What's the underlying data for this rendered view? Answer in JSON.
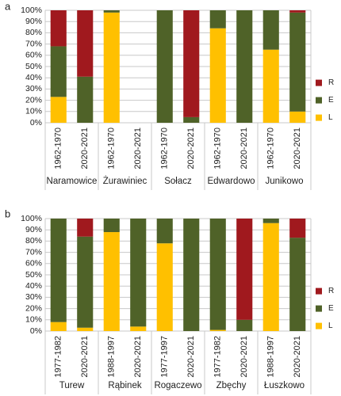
{
  "chart_data": [
    {
      "type": "bar",
      "stacked": true,
      "label": "a",
      "categories": [
        "1962-1970",
        "2020-2021",
        "1962-1970",
        "2020-2021",
        "1962-1970",
        "2020-2021",
        "1962-1970",
        "2020-2021",
        "1962-1970",
        "2020-2021"
      ],
      "groups": [
        "Naramowice",
        "Żurawiniec",
        "Sołacz",
        "Edwardowo",
        "Junikowo"
      ],
      "series": [
        {
          "name": "L",
          "color": "#ffc000",
          "values": [
            23,
            0,
            98,
            null,
            0,
            0,
            84,
            0,
            65,
            10
          ]
        },
        {
          "name": "E",
          "color": "#4f6228",
          "values": [
            45,
            41,
            2,
            null,
            100,
            5,
            16,
            100,
            35,
            88
          ]
        },
        {
          "name": "R",
          "color": "#a0191e",
          "values": [
            32,
            59,
            0,
            null,
            0,
            95,
            0,
            0,
            0,
            2
          ]
        }
      ],
      "ylim": [
        0,
        100
      ],
      "yticks": [
        {
          "value": 0,
          "label": "0%"
        },
        {
          "value": 10,
          "label": "10%"
        },
        {
          "value": 20,
          "label": "20%"
        },
        {
          "value": 30,
          "label": "30%"
        },
        {
          "value": 40,
          "label": "40%"
        },
        {
          "value": 50,
          "label": "50%"
        },
        {
          "value": 60,
          "label": "60%"
        },
        {
          "value": 70,
          "label": "70%"
        },
        {
          "value": 80,
          "label": "80%"
        },
        {
          "value": 90,
          "label": "90%"
        },
        {
          "value": 100,
          "label": "100%"
        }
      ],
      "grid": true,
      "legend": "right"
    },
    {
      "type": "bar",
      "stacked": true,
      "label": "b",
      "categories": [
        "1977-1982",
        "2020-2021",
        "1988-1997",
        "2020-2021",
        "1977-1997",
        "2020-2021",
        "1977-1982",
        "2020-2021",
        "1988-1997",
        "2020-2021"
      ],
      "groups": [
        "Turew",
        "Rąbinek",
        "Rogaczewo",
        "Zbęchy",
        "Łuszkowo"
      ],
      "series": [
        {
          "name": "L",
          "color": "#ffc000",
          "values": [
            8,
            3,
            88,
            4,
            78,
            0,
            1,
            0,
            96,
            0
          ]
        },
        {
          "name": "E",
          "color": "#4f6228",
          "values": [
            92,
            81,
            12,
            96,
            22,
            100,
            99,
            10,
            4,
            83
          ]
        },
        {
          "name": "R",
          "color": "#a0191e",
          "values": [
            0,
            16,
            0,
            0,
            0,
            0,
            0,
            90,
            0,
            17
          ]
        }
      ],
      "ylim": [
        0,
        100
      ],
      "yticks": [
        {
          "value": 0,
          "label": "0%"
        },
        {
          "value": 10,
          "label": "10%"
        },
        {
          "value": 20,
          "label": "20%"
        },
        {
          "value": 30,
          "label": "30%"
        },
        {
          "value": 40,
          "label": "40%"
        },
        {
          "value": 50,
          "label": "50%"
        },
        {
          "value": 60,
          "label": "60%"
        },
        {
          "value": 70,
          "label": "70%"
        },
        {
          "value": 80,
          "label": "80%"
        },
        {
          "value": 90,
          "label": "90%"
        },
        {
          "value": 100,
          "label": "100%"
        }
      ],
      "grid": true,
      "legend": "right"
    }
  ]
}
